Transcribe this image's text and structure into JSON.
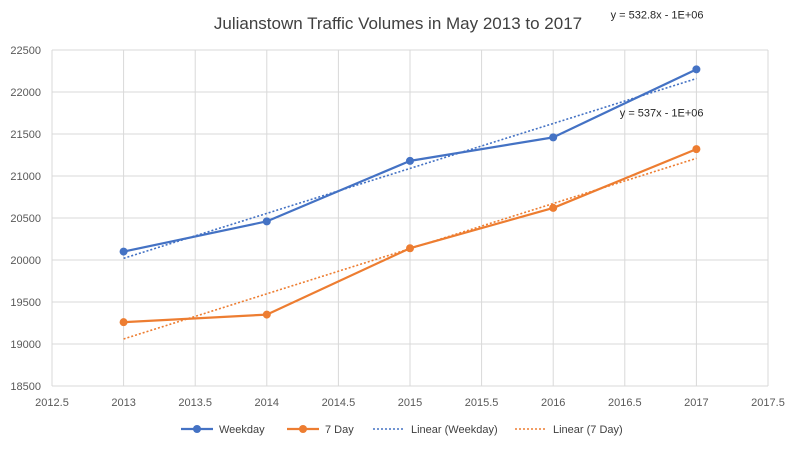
{
  "chart_data": {
    "type": "line",
    "title": "Julianstown Traffic Volumes in May 2013 to 2017",
    "xlabel": "",
    "ylabel": "",
    "xlim": [
      2012.5,
      2017.5
    ],
    "ylim": [
      18500,
      22500
    ],
    "xticks": [
      2012.5,
      2013,
      2013.5,
      2014,
      2014.5,
      2015,
      2015.5,
      2016,
      2016.5,
      2017,
      2017.5
    ],
    "xtick_labels": [
      "2012.5",
      "2013",
      "2013.5",
      "2014",
      "2014.5",
      "2015",
      "2015.5",
      "2016",
      "2016.5",
      "2017",
      "2017.5"
    ],
    "yticks": [
      18500,
      19000,
      19500,
      20000,
      20500,
      21000,
      21500,
      22000,
      22500
    ],
    "ytick_labels": [
      "18500",
      "19000",
      "19500",
      "20000",
      "20500",
      "21000",
      "21500",
      "22000",
      "22500"
    ],
    "grid": true,
    "legend_position": "bottom",
    "series": [
      {
        "name": "Weekday",
        "color": "#4472c4",
        "x": [
          2013,
          2014,
          2015,
          2016,
          2017
        ],
        "values": [
          20100,
          20460,
          21180,
          21460,
          22270
        ]
      },
      {
        "name": "7 Day",
        "color": "#ed7d31",
        "x": [
          2013,
          2014,
          2015,
          2016,
          2017
        ],
        "values": [
          19260,
          19350,
          20140,
          20620,
          21320
        ]
      }
    ],
    "trendlines": [
      {
        "name": "Linear (Weekday)",
        "color": "#4472c4",
        "x": [
          2013,
          2017
        ],
        "values": [
          20020,
          22160
        ],
        "equation": "y = 532.8x - 1E+06"
      },
      {
        "name": "Linear (7 Day)",
        "color": "#ed7d31",
        "x": [
          2013,
          2017
        ],
        "values": [
          19060,
          21210
        ],
        "equation": "y = 537x - 1E+06"
      }
    ],
    "legend": [
      "Weekday",
      "7 Day",
      "Linear (Weekday)",
      "Linear (7 Day)"
    ]
  }
}
